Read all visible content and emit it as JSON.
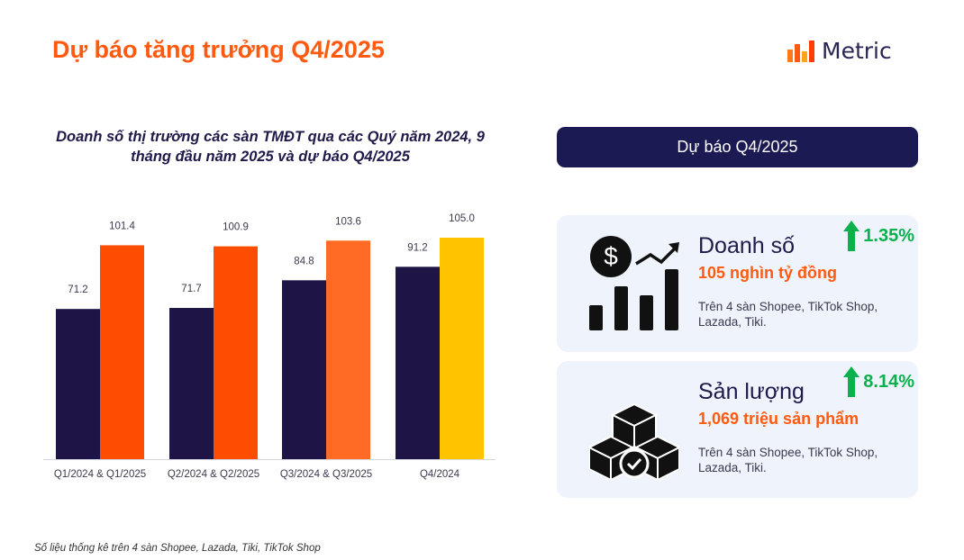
{
  "page": {
    "title": "Dự báo tăng trưởng Q4/2025",
    "logo_text": "Metric",
    "footnote": "Số liệu thống kê trên 4 sàn Shopee, Lazada, Tiki, TikTok Shop"
  },
  "panel": {
    "header": "Dự báo Q4/2025",
    "cards": [
      {
        "name": "Doanh số",
        "value": "105 nghìn tỷ đồng",
        "growth": "1.35%",
        "desc": "Trên 4 sàn Shopee, TikTok Shop, Lazada, Tiki.",
        "icon": "revenue-chart-icon"
      },
      {
        "name": "Sản lượng",
        "value": "1,069 triệu sản phẩm",
        "growth": "8.14%",
        "desc": "Trên 4 sàn Shopee, TikTok Shop, Lazada, Tiki.",
        "icon": "boxes-check-icon"
      }
    ],
    "growth_color": "#0bb14d"
  },
  "chart_data": {
    "type": "bar",
    "title": "Doanh số thị trường các sàn TMĐT qua các Quý năm 2024, 9 tháng đầu năm 2025 và dự báo Q4/2025",
    "categories": [
      "Q1/2024 & Q1/2025",
      "Q2/2024 & Q2/2025",
      "Q3/2024 & Q3/2025",
      "Q4/2024"
    ],
    "series": [
      {
        "values": [
          71.2,
          71.7,
          84.8,
          91.2
        ],
        "colors": [
          "#1e1446",
          "#1e1446",
          "#1e1446",
          "#1e1446"
        ]
      },
      {
        "values": [
          101.4,
          100.9,
          103.6,
          105.0
        ],
        "colors": [
          "#ff4d00",
          "#ff4d00",
          "#ff6a25",
          "#ffc300"
        ]
      }
    ],
    "labels": [
      [
        "71.2",
        "71.7",
        "84.8",
        "91.2"
      ],
      [
        "101.4",
        "100.9",
        "103.6",
        "105.0"
      ]
    ],
    "ylim": [
      0,
      105
    ],
    "grid": false,
    "legend": "none"
  }
}
